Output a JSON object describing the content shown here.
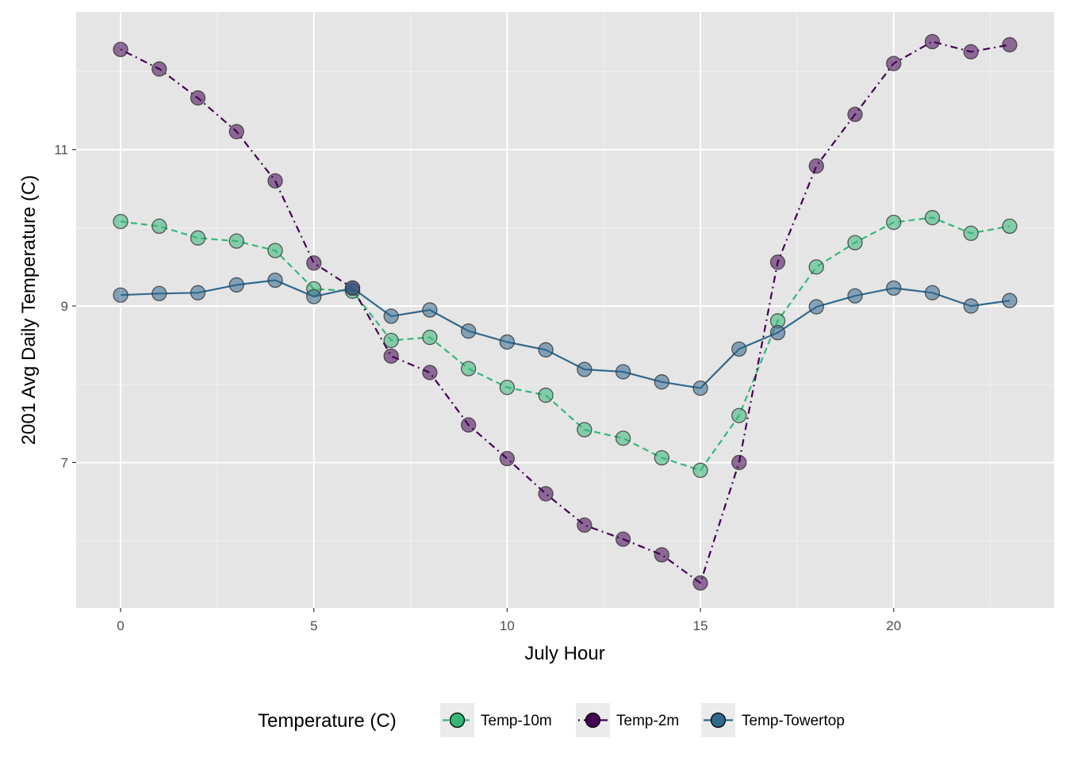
{
  "chart_data": {
    "type": "line",
    "xlabel": "July Hour",
    "ylabel": "2001 Avg Daily Temperature (C)",
    "xlim": [
      -1.15,
      24.15
    ],
    "ylim": [
      5.14,
      12.76
    ],
    "x_ticks": [
      0,
      5,
      10,
      15,
      20
    ],
    "y_ticks": [
      7,
      9,
      11
    ],
    "grid": true,
    "legend": {
      "title": "Temperature (C)",
      "position": "bottom"
    },
    "x": [
      0,
      1,
      2,
      3,
      4,
      5,
      6,
      7,
      8,
      9,
      10,
      11,
      12,
      13,
      14,
      15,
      16,
      17,
      18,
      19,
      20,
      21,
      22,
      23
    ],
    "series": [
      {
        "name": "Temp-10m",
        "color": "#35b779",
        "dash": "dashed",
        "values": [
          10.08,
          10.02,
          9.87,
          9.83,
          9.71,
          9.22,
          9.19,
          8.56,
          8.6,
          8.2,
          7.96,
          7.86,
          7.42,
          7.31,
          7.06,
          6.9,
          7.6,
          8.81,
          9.5,
          9.81,
          10.07,
          10.13,
          9.93,
          10.02
        ]
      },
      {
        "name": "Temp-2m",
        "color": "#440154",
        "dash": "dotdash",
        "values": [
          12.28,
          12.03,
          11.66,
          11.23,
          10.6,
          9.55,
          9.23,
          8.36,
          8.15,
          7.48,
          7.05,
          6.6,
          6.2,
          6.02,
          5.82,
          5.46,
          7.0,
          9.56,
          10.79,
          11.45,
          12.1,
          12.38,
          12.25,
          12.34
        ]
      },
      {
        "name": "Temp-Towertop",
        "color": "#31688e",
        "dash": "solid",
        "values": [
          9.14,
          9.16,
          9.17,
          9.27,
          9.33,
          9.12,
          9.23,
          8.87,
          8.95,
          8.68,
          8.54,
          8.44,
          8.19,
          8.16,
          8.03,
          7.95,
          8.45,
          8.66,
          8.99,
          9.13,
          9.23,
          9.17,
          9.0,
          9.07
        ]
      }
    ]
  }
}
